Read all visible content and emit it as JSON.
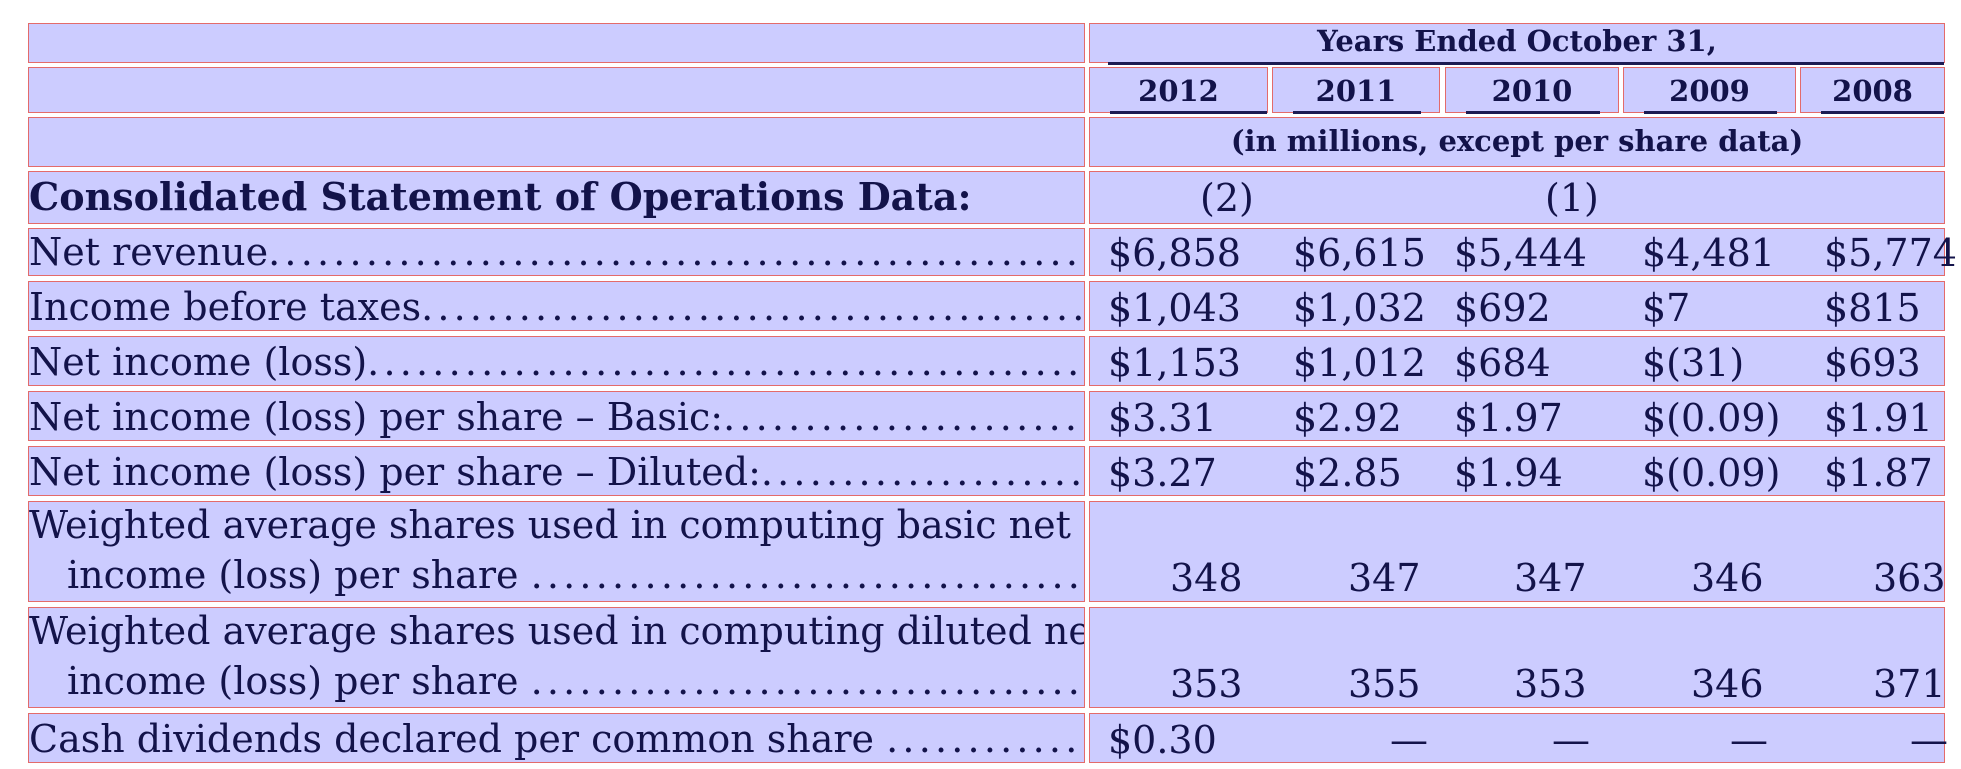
{
  "header": {
    "period": "Years Ended October 31,",
    "years": [
      "2012",
      "2011",
      "2010",
      "2009",
      "2008"
    ],
    "units": "(in millions, except per share data)",
    "notes": [
      "(2)",
      "(1)"
    ]
  },
  "section_title": "Consolidated Statement of Operations Data:",
  "rows": [
    {
      "label": "Net revenue",
      "values": [
        "$6,858",
        "$6,615",
        "$5,444",
        "$4,481",
        "$5,774"
      ]
    },
    {
      "label": "Income before taxes",
      "values": [
        "$1,043",
        "$1,032",
        "$692",
        "$7",
        "$815"
      ]
    },
    {
      "label": "Net income (loss)",
      "values": [
        "$1,153",
        "$1,012",
        "$684",
        "$(31)",
        "$693"
      ]
    },
    {
      "label": "Net income (loss) per share – Basic:",
      "values": [
        "$3.31",
        "$2.92",
        "$1.97",
        "$(0.09)",
        "$1.91"
      ]
    },
    {
      "label": "Net income (loss) per share – Diluted:",
      "values": [
        "$3.27",
        "$2.85",
        "$1.94",
        "$(0.09)",
        "$1.87"
      ]
    },
    {
      "label_line1": "Weighted average shares used in computing basic net",
      "label_line2": "income (loss) per share",
      "values": [
        "348",
        "347",
        "347",
        "346",
        "363"
      ]
    },
    {
      "label_line1": "Weighted average shares used in computing diluted net",
      "label_line2": "income (loss) per share",
      "values": [
        "353",
        "355",
        "353",
        "346",
        "371"
      ]
    },
    {
      "label": "Cash dividends declared per common share",
      "values": [
        "$0.30",
        "—",
        "—",
        "—",
        "—"
      ]
    }
  ],
  "leader": "........................................................................................................................"
}
